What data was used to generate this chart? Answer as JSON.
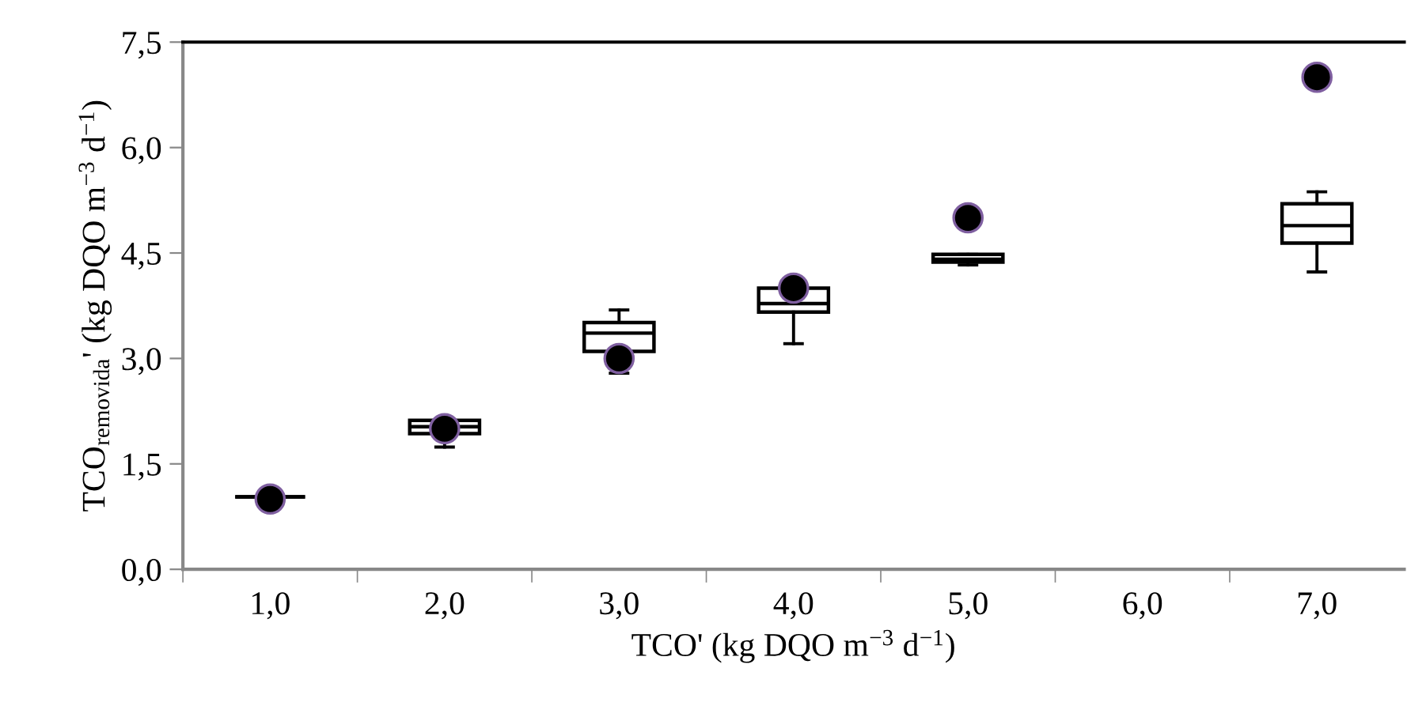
{
  "chart_data": {
    "type": "box",
    "xlabel": "TCO' (kg DQO m$^{−3}$ d$^{−1}$)",
    "ylabel": "TCO$_{removida}$' (kg DQO m$^{−3}$ d$^{−1}$)",
    "categories": [
      "1,0",
      "2,0",
      "3,0",
      "4,0",
      "5,0",
      "6,0",
      "7,0"
    ],
    "boxes": [
      {
        "low": 1.03,
        "q1": 1.03,
        "median": 1.03,
        "q3": 1.03,
        "high": 1.03
      },
      {
        "low": 1.74,
        "q1": 1.93,
        "median": 2.03,
        "q3": 2.12,
        "high": 2.12
      },
      {
        "low": 2.79,
        "q1": 3.1,
        "median": 3.36,
        "q3": 3.51,
        "high": 3.69
      },
      {
        "low": 3.21,
        "q1": 3.66,
        "median": 3.78,
        "q3": 4.0,
        "high": 4.0
      },
      {
        "low": 4.33,
        "q1": 4.37,
        "median": 4.41,
        "q3": 4.48,
        "high": 4.48
      },
      null,
      {
        "low": 4.23,
        "q1": 4.64,
        "median": 4.89,
        "q3": 5.2,
        "high": 5.37
      }
    ],
    "color": "#000000",
    "series": [
      {
        "type": "scatter",
        "color": "#000000",
        "x": [
          "1,0",
          "2,0",
          "3,0",
          "4,0",
          "5,0",
          "7,0"
        ],
        "values": [
          1.0,
          2.0,
          3.0,
          4.0,
          5.0,
          7.0
        ]
      }
    ],
    "ylim": [
      0,
      7.5
    ],
    "yticks": [
      {
        "value": 0,
        "label": "0,0"
      },
      {
        "value": 1.5,
        "label": "1,5"
      },
      {
        "value": 3,
        "label": "3,0"
      },
      {
        "value": 4.5,
        "label": "4,5"
      },
      {
        "value": 6,
        "label": "6,0"
      },
      {
        "value": 7.5,
        "label": "7,5"
      }
    ],
    "grid": false,
    "legend": false,
    "marker": "circle"
  }
}
